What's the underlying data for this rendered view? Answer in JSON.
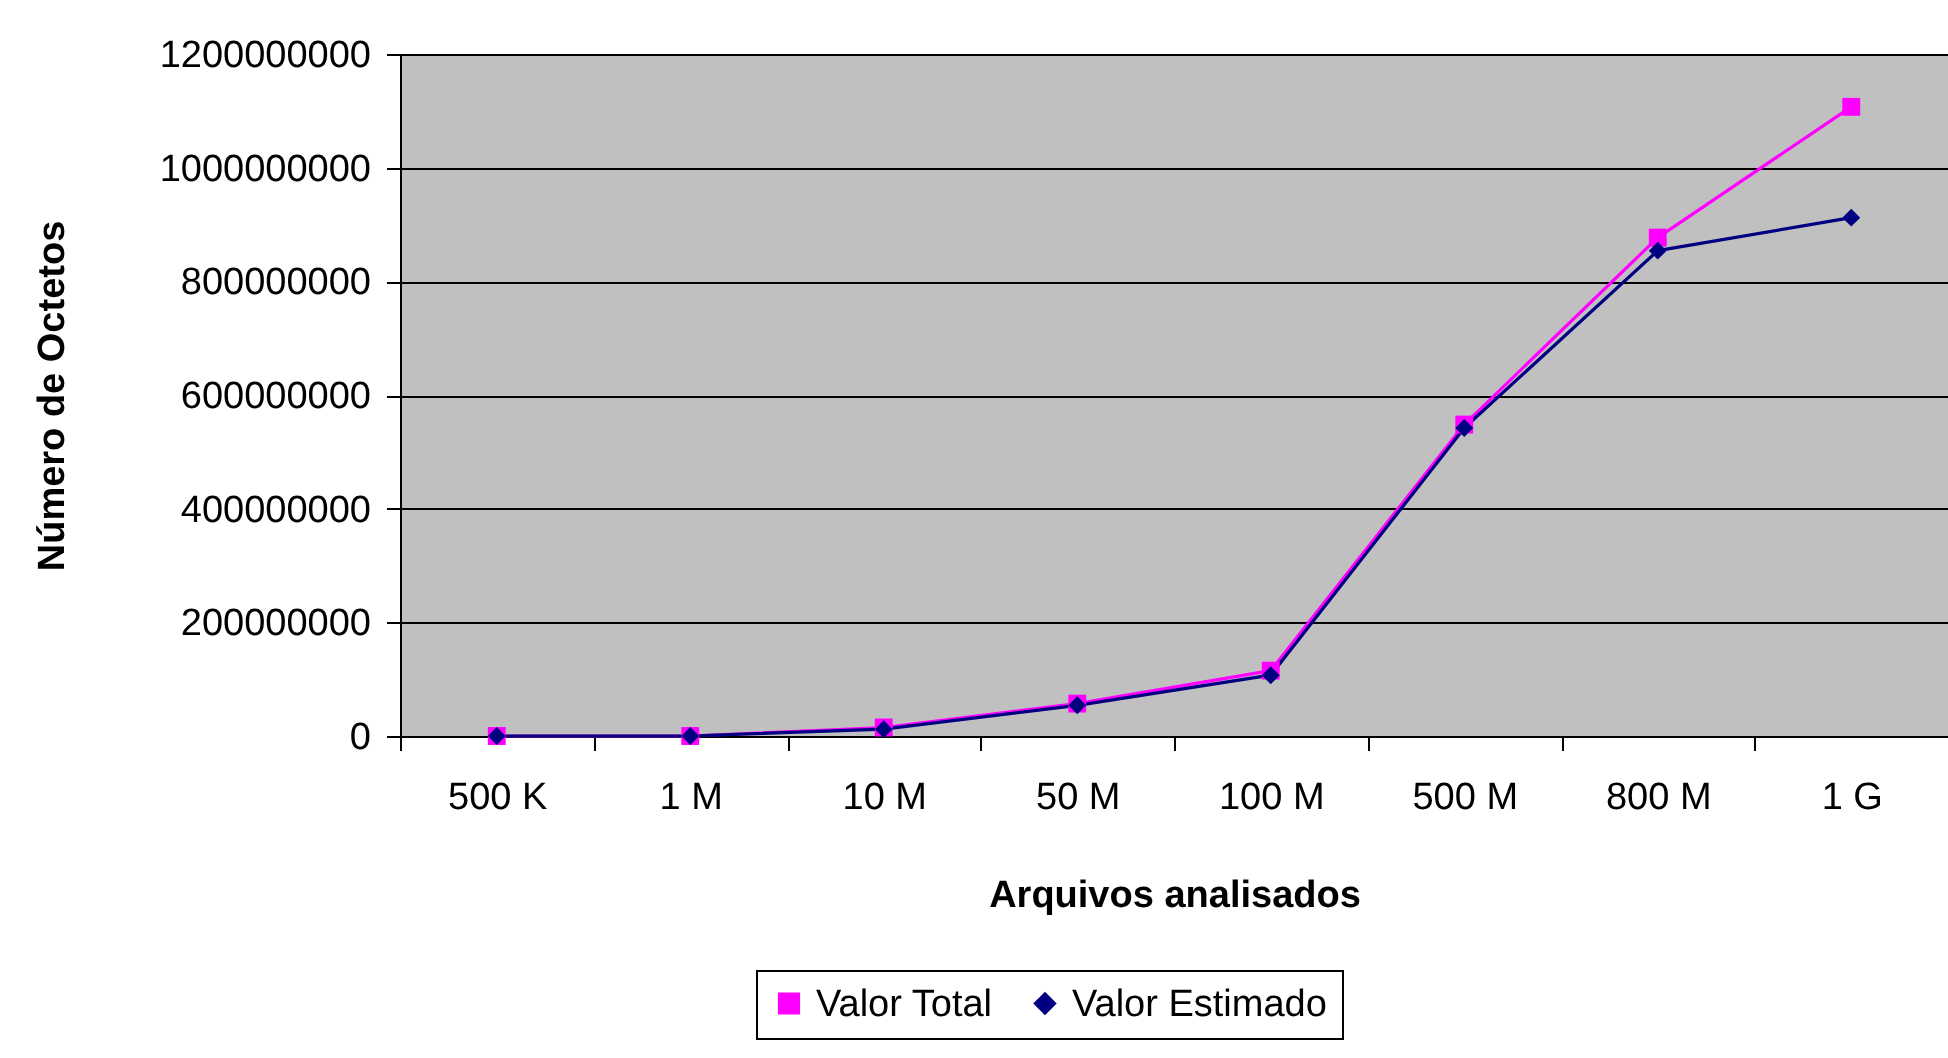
{
  "chart_data": {
    "type": "line",
    "xlabel": "Arquivos analisados",
    "ylabel": "Número de Octetos",
    "categories": [
      "500 K",
      "1 M",
      "10 M",
      "50 M",
      "100 M",
      "500 M",
      "800 M",
      "1 G"
    ],
    "series": [
      {
        "name": "Valor Total",
        "color": "#ff00ff",
        "marker": "square",
        "values": [
          0,
          0,
          15000000,
          57000000,
          115000000,
          548000000,
          877000000,
          1107000000
        ]
      },
      {
        "name": "Valor Estimado",
        "color": "#000080",
        "marker": "diamond",
        "values": [
          0,
          0,
          12000000,
          54000000,
          107000000,
          542000000,
          854000000,
          912000000
        ]
      }
    ],
    "ylim": [
      0,
      1200000000
    ],
    "yticks": [
      0,
      200000000,
      400000000,
      600000000,
      800000000,
      1000000000,
      1200000000
    ],
    "grid": "y",
    "legend": "bottom",
    "line_style": "solid"
  }
}
